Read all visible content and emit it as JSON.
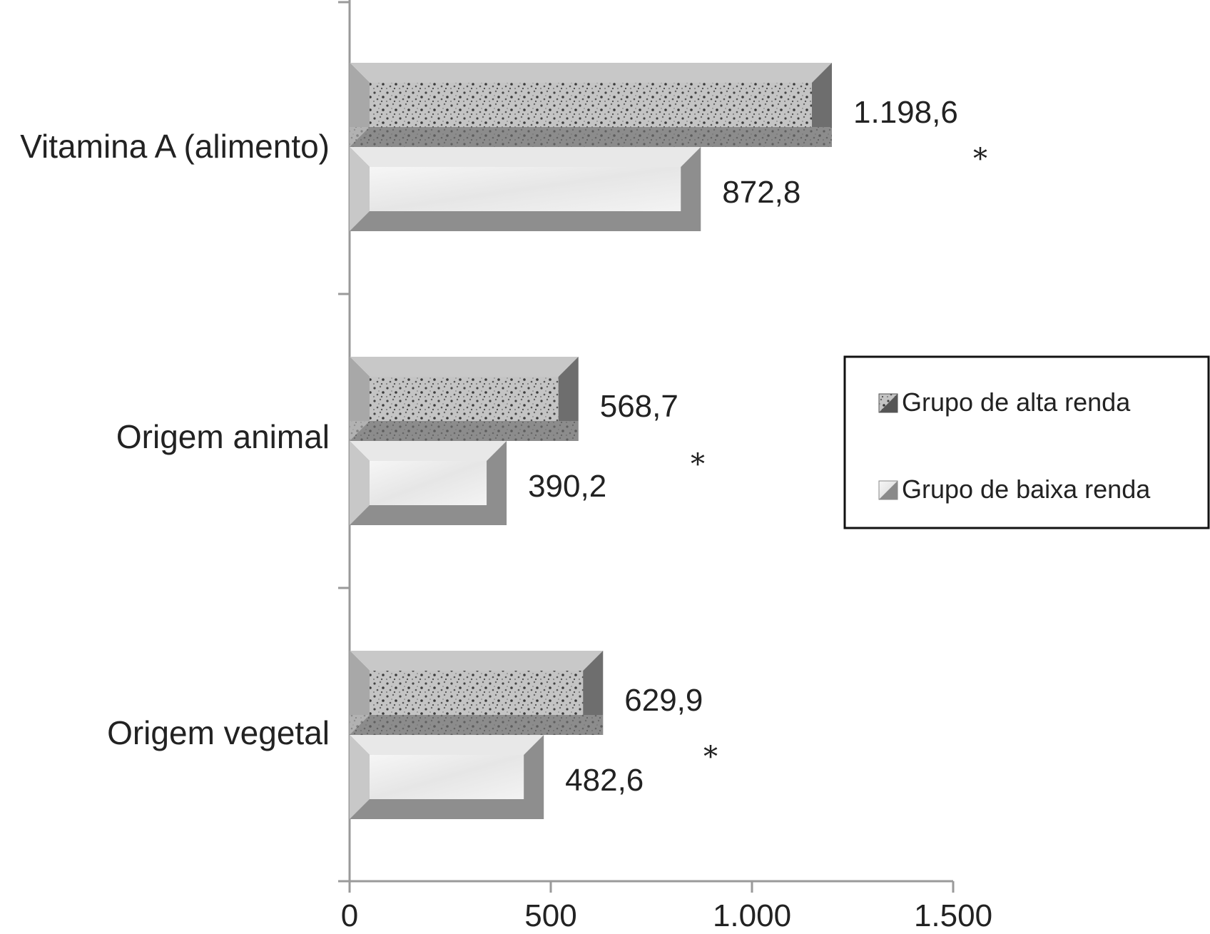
{
  "chart_data": {
    "type": "bar",
    "orientation": "horizontal",
    "categories": [
      "Vitamina A (alimento)",
      "Origem animal",
      "Origem vegetal"
    ],
    "series": [
      {
        "name": "Grupo de alta renda",
        "values": [
          1198.6,
          568.7,
          629.9
        ],
        "labels": [
          "1.198,6",
          "568,7",
          "629,9"
        ],
        "color": "#6e6e6e",
        "face_color": "#bdbdbd"
      },
      {
        "name": "Grupo de baixa renda",
        "values": [
          872.8,
          390.2,
          482.6
        ],
        "labels": [
          "872,8",
          "390,2",
          "482,6"
        ],
        "color": "#8e8e8e",
        "face_color": "#ededed"
      }
    ],
    "significance_marks": [
      "*",
      "*",
      "*"
    ],
    "xlim": [
      0,
      1500
    ],
    "xticks": [
      0,
      500,
      1000,
      1500
    ],
    "xtick_labels": [
      "0",
      "500",
      "1.000",
      "1.500"
    ],
    "grid": false,
    "legend_position": "right"
  }
}
